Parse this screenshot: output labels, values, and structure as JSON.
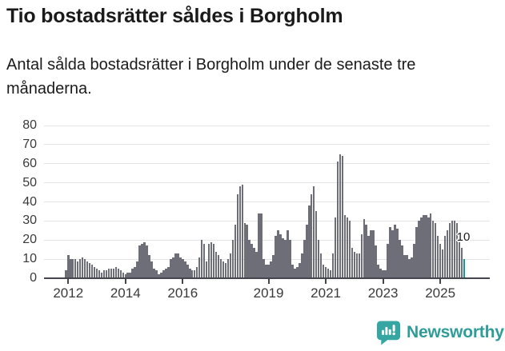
{
  "header": {
    "title": "Tio bostadsrätter såldes i Borgholm",
    "subtitle": "Antal sålda bostadsrätter i Borgholm under de senaste tre månaderna."
  },
  "chart_data": {
    "type": "bar",
    "title": "Tio bostadsrätter såldes i Borgholm",
    "description": "Antal sålda bostadsrätter i Borgholm under de senaste tre månaderna.",
    "freq": "monthly",
    "x_start": "2011-12",
    "x_end": "2025-11",
    "values": [
      4,
      12,
      10,
      10,
      10,
      9,
      10,
      11,
      10,
      9,
      8,
      7,
      6,
      5,
      4,
      3,
      4,
      4,
      5,
      5,
      5,
      6,
      5,
      4,
      3,
      2,
      3,
      3,
      5,
      6,
      9,
      17,
      18,
      19,
      17,
      12,
      9,
      5,
      4,
      2,
      3,
      4,
      5,
      6,
      10,
      11,
      13,
      13,
      11,
      10,
      9,
      7,
      5,
      4,
      4,
      6,
      11,
      20,
      18,
      9,
      18,
      19,
      18,
      14,
      12,
      10,
      9,
      8,
      10,
      13,
      20,
      28,
      44,
      48,
      49,
      29,
      28,
      20,
      18,
      16,
      14,
      34,
      34,
      10,
      7,
      7,
      9,
      12,
      22,
      25,
      23,
      21,
      20,
      25,
      20,
      7,
      5,
      6,
      8,
      13,
      20,
      28,
      38,
      44,
      48,
      35,
      20,
      13,
      7,
      6,
      5,
      4,
      13,
      32,
      61,
      65,
      64,
      33,
      32,
      30,
      16,
      14,
      13,
      13,
      23,
      31,
      28,
      22,
      25,
      25,
      17,
      7,
      5,
      4,
      4,
      18,
      27,
      25,
      28,
      26,
      20,
      17,
      12,
      12,
      10,
      11,
      18,
      27,
      30,
      32,
      33,
      33,
      32,
      34,
      30,
      29,
      22,
      18,
      15,
      22,
      25,
      29,
      30,
      30,
      29,
      20,
      16,
      10
    ],
    "ylim": [
      0,
      80
    ],
    "yticks": [
      0,
      10,
      20,
      30,
      40,
      50,
      60,
      70,
      80
    ],
    "xticks": [
      {
        "label": "2012",
        "month_index": 1
      },
      {
        "label": "2014",
        "month_index": 25
      },
      {
        "label": "2016",
        "month_index": 49
      },
      {
        "label": "2019",
        "month_index": 85
      },
      {
        "label": "2021",
        "month_index": 109
      },
      {
        "label": "2023",
        "month_index": 133
      },
      {
        "label": "2025",
        "month_index": 157
      }
    ],
    "grid": true,
    "legend": false,
    "bar_color": "#6e6e78",
    "highlight": {
      "index": 167,
      "month": "2025-11",
      "value": 10,
      "label": "10",
      "color": "#0a9e99"
    }
  },
  "annotation": {
    "text": "10"
  },
  "footer": {
    "brand": "Newsworthy"
  },
  "colors": {
    "background": "#ffffff",
    "bar": "#6e6e78",
    "highlight": "#0a9e99",
    "gridline": "#e4e4e4",
    "axis": "#45454d",
    "text": "#1a1a1a",
    "brand_teal": "#35a6a2"
  }
}
